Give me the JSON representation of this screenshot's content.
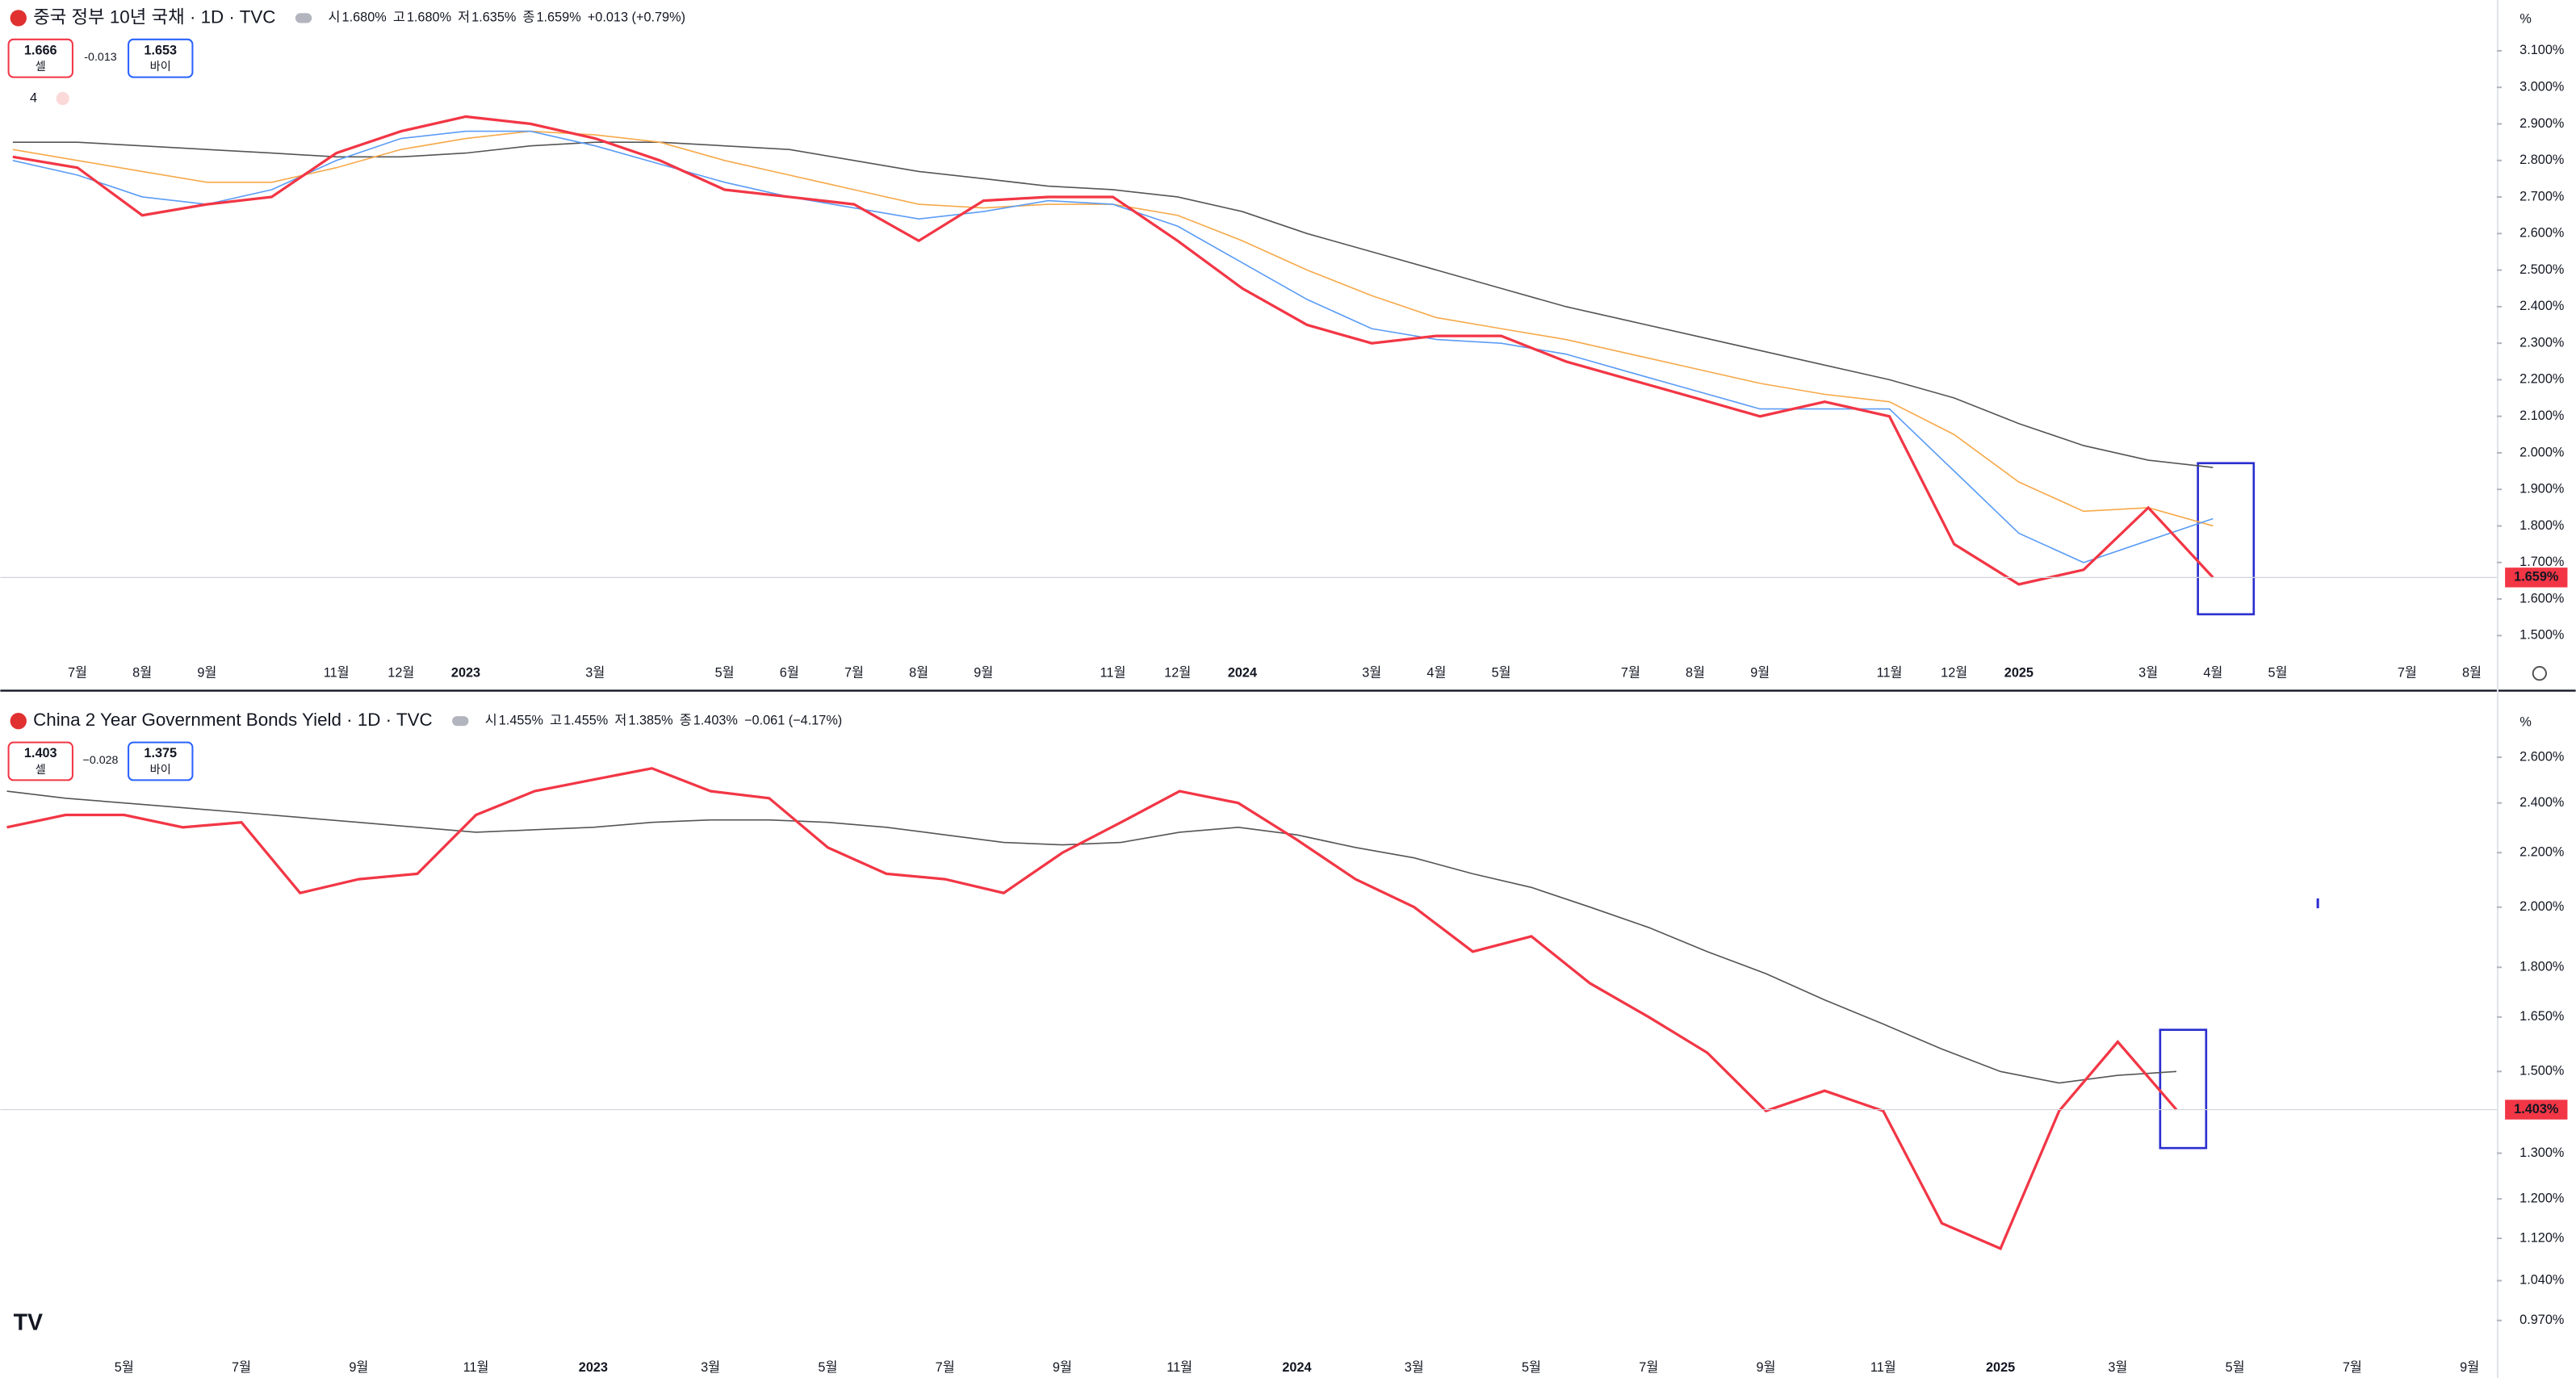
{
  "chart_data": [
    {
      "type": "line",
      "title": "중국 정부 10년 국채 · 1D · TVC",
      "ohlc": [
        {
          "key": "시",
          "text": "1.680%"
        },
        {
          "key": "고",
          "text": "1.680%"
        },
        {
          "key": "저",
          "text": "1.635%"
        },
        {
          "key": "종",
          "text": "1.659%"
        }
      ],
      "change": "+0.013 (+0.79%)",
      "sell": {
        "price": "1.666",
        "label": "셀"
      },
      "spread": "-0.013",
      "buy": {
        "price": "1.653",
        "label": "바이"
      },
      "indicators_count": "4",
      "axis_unit": "%",
      "last_label": "1.659%",
      "log_scale": false,
      "categories": [
        null,
        "7월",
        "8월",
        "9월",
        null,
        "11월",
        "12월",
        "2023",
        null,
        "3월",
        null,
        "5월",
        "6월",
        "7월",
        "8월",
        "9월",
        null,
        "11월",
        "12월",
        "2024",
        null,
        "3월",
        "4월",
        "5월",
        null,
        "7월",
        "8월",
        "9월",
        null,
        "11월",
        "12월",
        "2025",
        null,
        "3월",
        "4월",
        "5월",
        null,
        "7월",
        "8월"
      ],
      "series": [
        {
          "color": "#f23645",
          "values": [
            2.81,
            2.78,
            2.65,
            2.68,
            2.7,
            2.82,
            2.88,
            2.92,
            2.9,
            2.86,
            2.8,
            2.72,
            2.7,
            2.68,
            2.58,
            2.69,
            2.7,
            2.7,
            2.58,
            2.45,
            2.35,
            2.3,
            2.32,
            2.32,
            2.25,
            2.2,
            2.15,
            2.1,
            2.14,
            2.1,
            1.75,
            1.64,
            1.68,
            1.85,
            1.659,
            null,
            null,
            null,
            null
          ]
        },
        {
          "color": "#5b9cf6",
          "values": [
            2.8,
            2.76,
            2.7,
            2.68,
            2.72,
            2.8,
            2.86,
            2.88,
            2.88,
            2.84,
            2.79,
            2.74,
            2.7,
            2.67,
            2.64,
            2.66,
            2.69,
            2.68,
            2.62,
            2.52,
            2.42,
            2.34,
            2.31,
            2.3,
            2.27,
            2.22,
            2.17,
            2.12,
            2.12,
            2.12,
            1.95,
            1.78,
            1.7,
            1.76,
            1.82,
            null,
            null,
            null,
            null
          ]
        },
        {
          "color": "#f7a94a",
          "values": [
            2.83,
            2.8,
            2.77,
            2.74,
            2.74,
            2.78,
            2.83,
            2.86,
            2.88,
            2.87,
            2.85,
            2.8,
            2.76,
            2.72,
            2.68,
            2.67,
            2.68,
            2.68,
            2.65,
            2.58,
            2.5,
            2.43,
            2.37,
            2.34,
            2.31,
            2.27,
            2.23,
            2.19,
            2.16,
            2.14,
            2.05,
            1.92,
            1.84,
            1.85,
            1.8,
            null,
            null,
            null,
            null
          ]
        },
        {
          "color": "#555555",
          "values": [
            2.85,
            2.85,
            2.84,
            2.83,
            2.82,
            2.81,
            2.81,
            2.82,
            2.84,
            2.85,
            2.85,
            2.84,
            2.83,
            2.8,
            2.77,
            2.75,
            2.73,
            2.72,
            2.7,
            2.66,
            2.6,
            2.55,
            2.5,
            2.45,
            2.4,
            2.36,
            2.32,
            2.28,
            2.24,
            2.2,
            2.15,
            2.08,
            2.02,
            1.98,
            1.96,
            null,
            null,
            null,
            null
          ]
        }
      ],
      "ylim": [
        1.428,
        3.239
      ],
      "yticks": [
        {
          "value": 1.5,
          "label": "1.500%"
        },
        {
          "value": 1.6,
          "label": "1.600%"
        },
        {
          "value": 1.7,
          "label": "1.700%"
        },
        {
          "value": 1.8,
          "label": "1.800%"
        },
        {
          "value": 1.9,
          "label": "1.900%"
        },
        {
          "value": 2.0,
          "label": "2.000%"
        },
        {
          "value": 2.1,
          "label": "2.100%"
        },
        {
          "value": 2.2,
          "label": "2.200%"
        },
        {
          "value": 2.3,
          "label": "2.300%"
        },
        {
          "value": 2.4,
          "label": "2.400%"
        },
        {
          "value": 2.5,
          "label": "2.500%"
        },
        {
          "value": 2.6,
          "label": "2.600%"
        },
        {
          "value": 2.7,
          "label": "2.700%"
        },
        {
          "value": 2.8,
          "label": "2.800%"
        },
        {
          "value": 2.9,
          "label": "2.900%"
        },
        {
          "value": 3.0,
          "label": "3.000%"
        },
        {
          "value": 3.1,
          "label": "3.100%"
        }
      ]
    },
    {
      "type": "line",
      "title": "China 2 Year Government Bonds Yield · 1D · TVC",
      "ohlc": [
        {
          "key": "시",
          "text": "1.455%"
        },
        {
          "key": "고",
          "text": "1.455%"
        },
        {
          "key": "저",
          "text": "1.385%"
        },
        {
          "key": "종",
          "text": "1.403%"
        }
      ],
      "change": "−0.061 (−4.17%)",
      "sell": {
        "price": "1.403",
        "label": "셀"
      },
      "spread": "−0.028",
      "buy": {
        "price": "1.375",
        "label": "바이"
      },
      "axis_unit": "%",
      "last_label": "1.403%",
      "log_scale": true,
      "categories": [
        null,
        null,
        "5월",
        null,
        "7월",
        null,
        "9월",
        null,
        "11월",
        null,
        "2023",
        null,
        "3월",
        null,
        "5월",
        null,
        "7월",
        null,
        "9월",
        null,
        "11월",
        null,
        "2024",
        null,
        "3월",
        null,
        "5월",
        null,
        "7월",
        null,
        "9월",
        null,
        "11월",
        null,
        "2025",
        null,
        "3월",
        null,
        "5월",
        null,
        "7월",
        null,
        "9월"
      ],
      "series": [
        {
          "color": "#f23645",
          "values": [
            2.3,
            2.35,
            2.35,
            2.3,
            2.32,
            2.05,
            2.1,
            2.12,
            2.35,
            2.45,
            2.5,
            2.55,
            2.45,
            2.42,
            2.22,
            2.12,
            2.1,
            2.05,
            2.2,
            2.32,
            2.45,
            2.4,
            2.25,
            2.1,
            2.0,
            1.85,
            1.9,
            1.75,
            1.65,
            1.55,
            1.4,
            1.45,
            1.4,
            1.15,
            1.1,
            1.4,
            1.58,
            1.403,
            null,
            null,
            null,
            null,
            null
          ]
        },
        {
          "color": "#555555",
          "values": [
            2.45,
            2.42,
            2.4,
            2.38,
            2.36,
            2.34,
            2.32,
            2.3,
            2.28,
            2.29,
            2.3,
            2.32,
            2.33,
            2.33,
            2.32,
            2.3,
            2.27,
            2.24,
            2.23,
            2.24,
            2.28,
            2.3,
            2.27,
            2.22,
            2.18,
            2.12,
            2.07,
            2.0,
            1.93,
            1.85,
            1.78,
            1.7,
            1.63,
            1.56,
            1.5,
            1.47,
            1.49,
            1.5,
            null,
            null,
            null,
            null,
            null
          ]
        }
      ],
      "ylim": [
        0.921,
        2.884
      ],
      "yticks": [
        {
          "value": 0.97,
          "label": "0.970%"
        },
        {
          "value": 1.04,
          "label": "1.040%"
        },
        {
          "value": 1.12,
          "label": "1.120%"
        },
        {
          "value": 1.2,
          "label": "1.200%"
        },
        {
          "value": 1.3,
          "label": "1.300%"
        },
        {
          "value": 1.5,
          "label": "1.500%"
        },
        {
          "value": 1.65,
          "label": "1.650%"
        },
        {
          "value": 1.8,
          "label": "1.800%"
        },
        {
          "value": 2.0,
          "label": "2.000%"
        },
        {
          "value": 2.2,
          "label": "2.200%"
        },
        {
          "value": 2.4,
          "label": "2.400%"
        },
        {
          "value": 2.6,
          "label": "2.600%"
        }
      ]
    }
  ]
}
